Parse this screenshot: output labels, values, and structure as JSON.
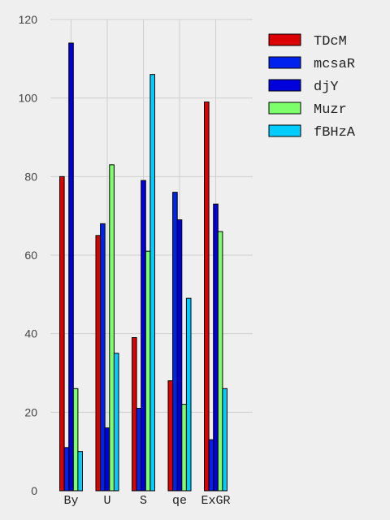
{
  "chart_data": {
    "type": "bar",
    "categories": [
      "By",
      "U",
      "S",
      "qe",
      "ExGR"
    ],
    "series": [
      {
        "name": "TDcM",
        "color": "#dd0000",
        "values": [
          80,
          65,
          39,
          28,
          99
        ]
      },
      {
        "name": "mcsaR",
        "color": "#0022ee",
        "values": [
          11,
          68,
          21,
          76,
          13
        ]
      },
      {
        "name": "djY",
        "color": "#0000dd",
        "values": [
          114,
          16,
          79,
          69,
          73
        ]
      },
      {
        "name": "Muzr",
        "color": "#7dff6b",
        "values": [
          26,
          83,
          61,
          22,
          66
        ]
      },
      {
        "name": "fBHzA",
        "color": "#00ccff",
        "values": [
          10,
          35,
          106,
          49,
          26
        ]
      }
    ],
    "ylim": [
      0,
      120
    ],
    "yticks": [
      0,
      20,
      40,
      60,
      80,
      100,
      120
    ],
    "grid": true,
    "legend_position": "top-right"
  }
}
